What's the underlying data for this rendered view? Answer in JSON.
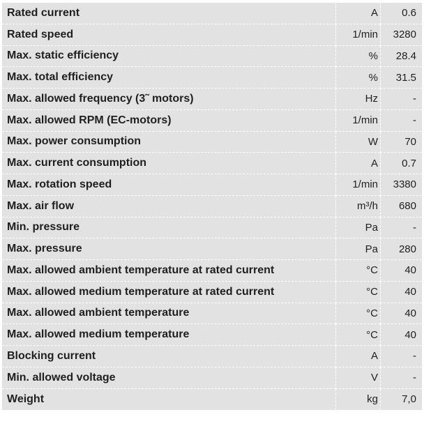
{
  "specs": [
    {
      "parameter": "Rated current",
      "unit": "A",
      "value": "0.6"
    },
    {
      "parameter": "Rated speed",
      "unit": "1/min",
      "value": "3280"
    },
    {
      "parameter": "Max. static efficiency",
      "unit": "%",
      "value": "28.4"
    },
    {
      "parameter": "Max. total efficiency",
      "unit": "%",
      "value": "31.5"
    },
    {
      "parameter": "Max. allowed frequency (3˜ motors)",
      "unit": "Hz",
      "value": "-"
    },
    {
      "parameter": "Max. allowed RPM (EC-motors)",
      "unit": "1/min",
      "value": "-"
    },
    {
      "parameter": "Max. power consumption",
      "unit": "W",
      "value": "70"
    },
    {
      "parameter": "Max. current consumption",
      "unit": "A",
      "value": "0.7"
    },
    {
      "parameter": "Max. rotation speed",
      "unit": "1/min",
      "value": "3380"
    },
    {
      "parameter": "Max. air flow",
      "unit": "m³/h",
      "value": "680"
    },
    {
      "parameter": "Min. pressure",
      "unit": "Pa",
      "value": "-"
    },
    {
      "parameter": "Max. pressure",
      "unit": "Pa",
      "value": "280"
    },
    {
      "parameter": "Max. allowed ambient temperature at rated current",
      "unit": "°C",
      "value": "40"
    },
    {
      "parameter": "Max. allowed medium temperature at rated current",
      "unit": "°C",
      "value": "40"
    },
    {
      "parameter": "Max. allowed ambient temperature",
      "unit": "°C",
      "value": "40"
    },
    {
      "parameter": "Max. allowed medium temperature",
      "unit": "°C",
      "value": "40"
    },
    {
      "parameter": "Blocking current",
      "unit": "A",
      "value": "-"
    },
    {
      "parameter": "Min. allowed voltage",
      "unit": "V",
      "value": "-"
    },
    {
      "parameter": "Weight",
      "unit": "kg",
      "value": "7,0"
    }
  ]
}
